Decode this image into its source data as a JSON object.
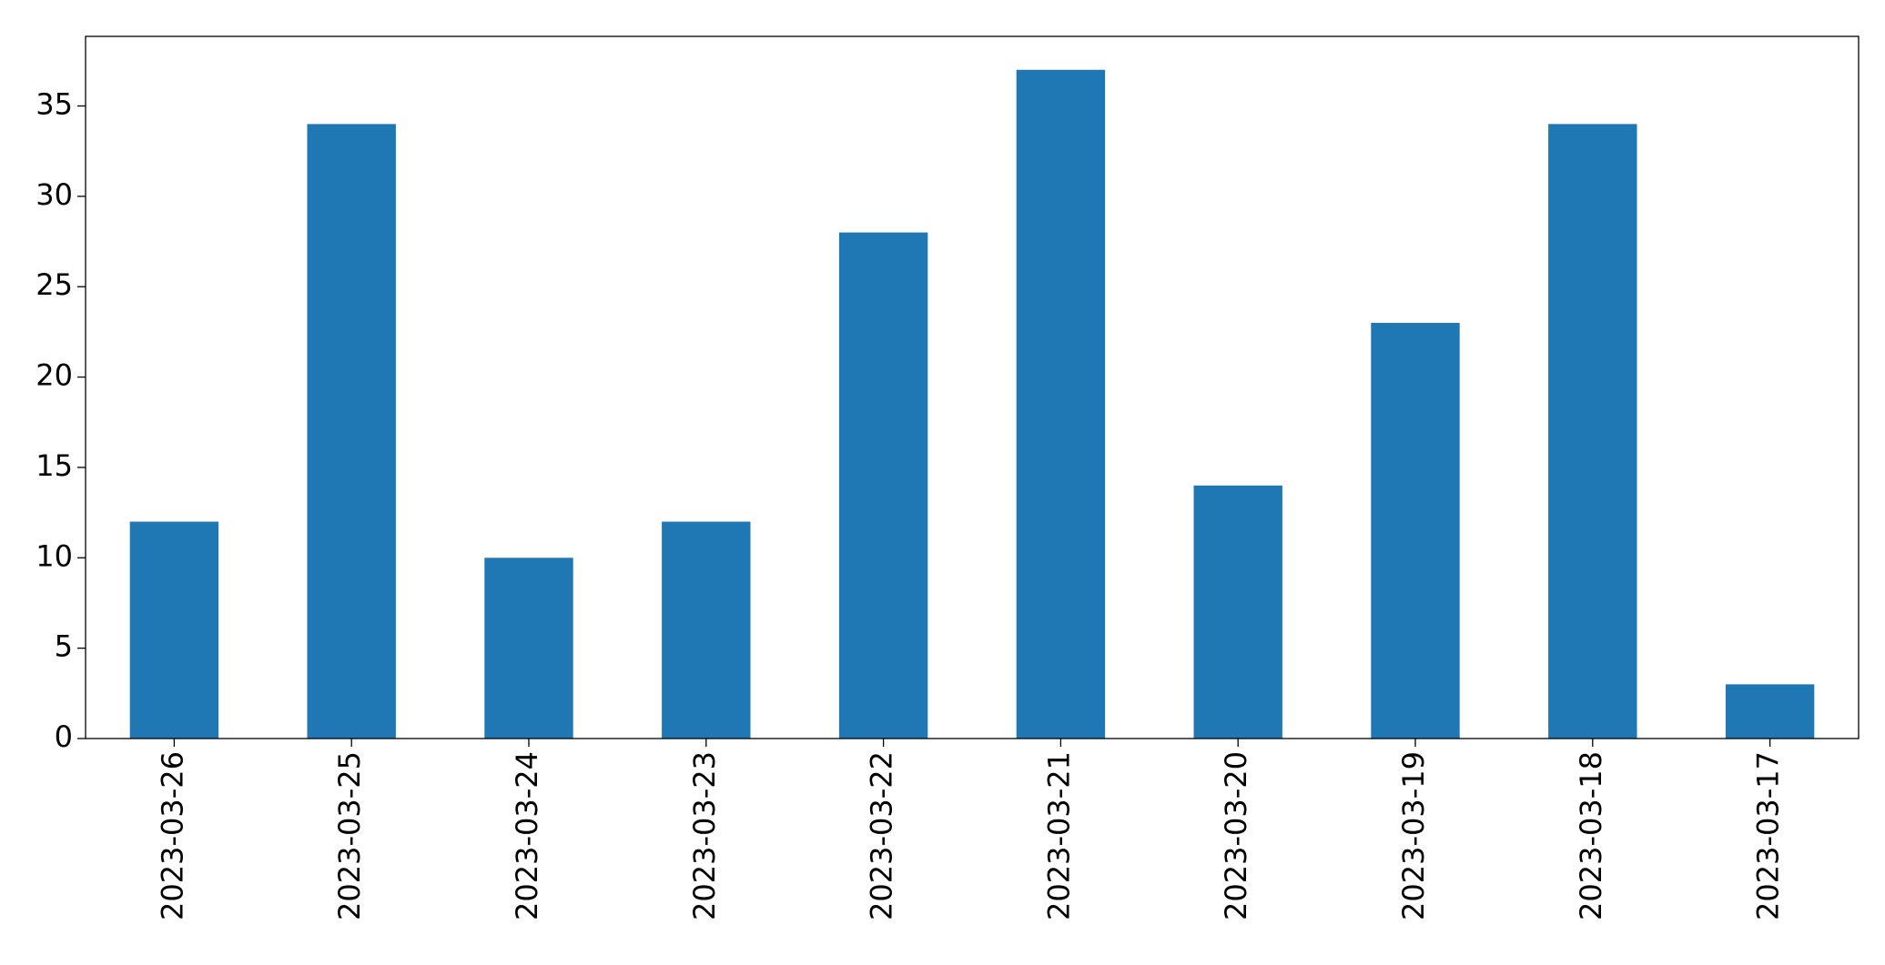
{
  "chart_data": {
    "type": "bar",
    "categories": [
      "2023-03-26",
      "2023-03-25",
      "2023-03-24",
      "2023-03-23",
      "2023-03-22",
      "2023-03-21",
      "2023-03-20",
      "2023-03-19",
      "2023-03-18",
      "2023-03-17"
    ],
    "values": [
      12,
      34,
      10,
      12,
      28,
      37,
      14,
      23,
      34,
      3
    ],
    "color": "#1f77b4",
    "ylim": [
      0,
      38.85
    ],
    "yticks": [
      0,
      5,
      10,
      15,
      20,
      25,
      30,
      35
    ],
    "grid": false
  }
}
